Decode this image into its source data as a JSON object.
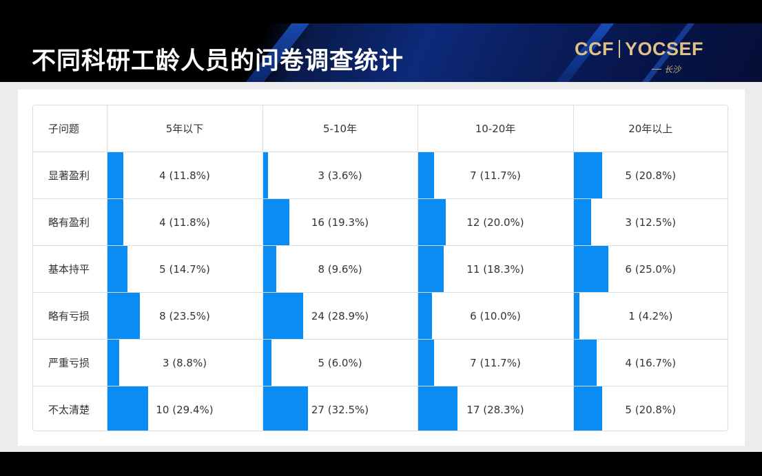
{
  "header": {
    "title": "不同科研工龄人员的问卷调查统计",
    "logo": {
      "left": "CCF",
      "right": "YOCSEF",
      "sub": "长沙"
    }
  },
  "colors": {
    "bar": "#0a8cf5",
    "header_gold": "#e1c18a"
  },
  "table": {
    "columns": [
      "子问题",
      "5年以下",
      "5-10年",
      "10-20年",
      "20年以上"
    ],
    "rows": [
      {
        "label": "显著盈利",
        "cells": [
          {
            "text": "4 (11.8%)",
            "pct": 11.8
          },
          {
            "text": "3 (3.6%)",
            "pct": 3.6
          },
          {
            "text": "7 (11.7%)",
            "pct": 11.7
          },
          {
            "text": "5 (20.8%)",
            "pct": 20.8
          }
        ]
      },
      {
        "label": "略有盈利",
        "cells": [
          {
            "text": "4 (11.8%)",
            "pct": 11.8
          },
          {
            "text": "16 (19.3%)",
            "pct": 19.3
          },
          {
            "text": "12 (20.0%)",
            "pct": 20.0
          },
          {
            "text": "3 (12.5%)",
            "pct": 12.5
          }
        ]
      },
      {
        "label": "基本持平",
        "cells": [
          {
            "text": "5 (14.7%)",
            "pct": 14.7
          },
          {
            "text": "8 (9.6%)",
            "pct": 9.6
          },
          {
            "text": "11 (18.3%)",
            "pct": 18.3
          },
          {
            "text": "6 (25.0%)",
            "pct": 25.0
          }
        ]
      },
      {
        "label": "略有亏损",
        "cells": [
          {
            "text": "8 (23.5%)",
            "pct": 23.5
          },
          {
            "text": "24 (28.9%)",
            "pct": 28.9
          },
          {
            "text": "6 (10.0%)",
            "pct": 10.0
          },
          {
            "text": "1 (4.2%)",
            "pct": 4.2
          }
        ]
      },
      {
        "label": "严重亏损",
        "cells": [
          {
            "text": "3 (8.8%)",
            "pct": 8.8
          },
          {
            "text": "5 (6.0%)",
            "pct": 6.0
          },
          {
            "text": "7 (11.7%)",
            "pct": 11.7
          },
          {
            "text": "4 (16.7%)",
            "pct": 16.7
          }
        ]
      },
      {
        "label": "不太清楚",
        "cells": [
          {
            "text": "10 (29.4%)",
            "pct": 29.4
          },
          {
            "text": "27 (32.5%)",
            "pct": 32.5
          },
          {
            "text": "17 (28.3%)",
            "pct": 28.3
          },
          {
            "text": "5 (20.8%)",
            "pct": 20.8
          }
        ]
      }
    ]
  }
}
